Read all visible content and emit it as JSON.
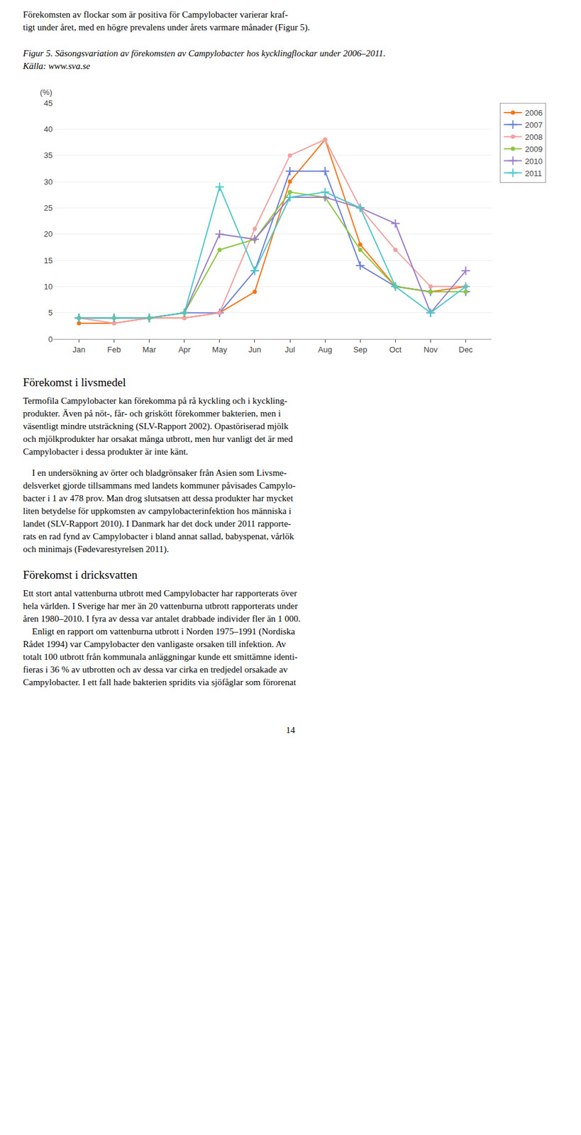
{
  "chart_data": {
    "type": "line",
    "title": "Figur 5. Säsongsvariation av förekomsten av Campylobacter hos kycklingflockar under 2006–2011. Källa: www.sva.se",
    "y_label": "(%)",
    "categories": [
      "Jan",
      "Feb",
      "Mar",
      "Apr",
      "May",
      "Jun",
      "Jul",
      "Aug",
      "Sep",
      "Oct",
      "Nov",
      "Dec"
    ],
    "series": [
      {
        "name": "2006",
        "color": "#F97316",
        "marker": "circle",
        "values": [
          3,
          3,
          4,
          4,
          5,
          9,
          30,
          38,
          18,
          10,
          9,
          10
        ]
      },
      {
        "name": "2007",
        "color": "#6B7FD7",
        "marker": "plus",
        "values": [
          4,
          4,
          4,
          5,
          5,
          13,
          32,
          32,
          14,
          10,
          9,
          9
        ]
      },
      {
        "name": "2008",
        "color": "#F4A0A0",
        "marker": "circle",
        "values": [
          4,
          3,
          4,
          4,
          5,
          21,
          35,
          38,
          25,
          17,
          10,
          10
        ]
      },
      {
        "name": "2009",
        "color": "#8DC63F",
        "marker": "circle",
        "values": [
          4,
          4,
          4,
          5,
          17,
          19,
          28,
          27,
          17,
          10,
          9,
          9
        ]
      },
      {
        "name": "2010",
        "color": "#9B7EC8",
        "marker": "plus",
        "values": [
          4,
          4,
          4,
          5,
          20,
          19,
          27,
          27,
          25,
          22,
          5,
          13
        ]
      },
      {
        "name": "2011",
        "color": "#4DC8C8",
        "marker": "plus",
        "values": [
          4,
          4,
          4,
          5,
          29,
          13,
          27,
          28,
          25,
          10,
          5,
          10
        ]
      }
    ],
    "ylim": [
      0,
      45
    ],
    "yticks": [
      0,
      5,
      10,
      15,
      20,
      25,
      30,
      35,
      40,
      45
    ],
    "grid": true,
    "legend": "upper right",
    "annotations": [
      "Förekomsten av flockar som är positiva för Campylobacter varierar kraf-",
      "tigt under året, med en högre prevalens under årets varmare månader (Figur 5).",
      "Förekomst i livsmedel",
      "Termofila Campylobacter kan förekomma på rå kyckling och i kyckling-",
      "produkter. Även på nöt-, får- och griskött förekommer bakterien, men i",
      "väsentligt mindre utsträckning (SLV-Rapport 2002). Opastöriserad mjölk",
      "och mjölkprodukter har orsakat många utbrott, men hur vanligt det är med",
      "Campylobacter i dessa produkter är inte känt.",
      "    I en undersökning av örter och bladgrönsaker från Asien som Livsme-",
      "delsverket gjorde tillsammans med landets kommuner påvisades Campylo-",
      "bacter i 1 av 478 prov. Man drog slutsatsen att dessa produkter har mycket",
      "liten betydelse för uppkomsten av campylobacterinfektion hos människa i",
      "landet (SLV-Rapport 2010). I Danmark har det dock under 2011 rapporte-",
      "rats en rad fynd av Campylobacter i bland annat sallad, babyspenat, vårlök",
      "och minimajs (Fødevarestyrelsen 2011).",
      "Förekomst i dricksvatten",
      "Ett stort antal vattenburna utbrott med Campylobacter har rapporterats över",
      "hela världen. I Sverige har mer än 20 vattenburna utbrott rapporterats under",
      "åren 1980–2010. I fyra av dessa var antalet drabbade individer fler än 1 000.",
      "    Enligt en rapport om vattenburna utbrott i Norden 1975–1991 (Nordiska",
      "Rådet 1994) var Campylobacter den vanligaste orsaken till infektion. Av",
      "totalt 100 utbrott från kommunala anläggningar kunde ett smittämne identi-",
      "fieras i 36 % av utbrotten och av dessa var cirka en tredjedel orsakade av",
      "Campylobacter. I ett fall hade bakterien spridits via sjöfåglar som förorenat",
      "14"
    ]
  }
}
